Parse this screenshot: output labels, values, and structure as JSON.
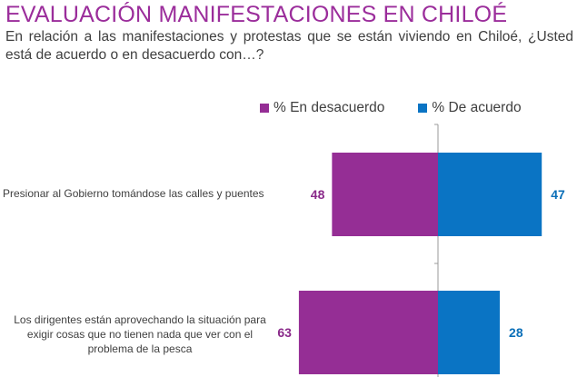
{
  "title": "EVALUACIÓN MANIFESTACIONES EN CHILOÉ",
  "subtitle": "En relación a las manifestaciones y protestas que se están viviendo en Chiloé, ¿Usted está de acuerdo o en desacuerdo con…?",
  "colors": {
    "desacuerdo": "#952e95",
    "acuerdo": "#0a74c4",
    "desacuerdo_label": "#8a2a8a",
    "acuerdo_label": "#0a6fb8"
  },
  "chart_data": {
    "type": "bar",
    "orientation": "horizontal-diverging",
    "categories": [
      "Presionar al Gobierno tomándose las calles y puentes",
      "Los dirigentes están aprovechando la situación para exigir cosas que no tienen nada que ver con el problema de la pesca"
    ],
    "series": [
      {
        "name": "% En desacuerdo",
        "values": [
          48,
          63
        ]
      },
      {
        "name": "% De acuerdo",
        "values": [
          47,
          28
        ]
      }
    ],
    "legend_position": "top",
    "grid": false
  }
}
